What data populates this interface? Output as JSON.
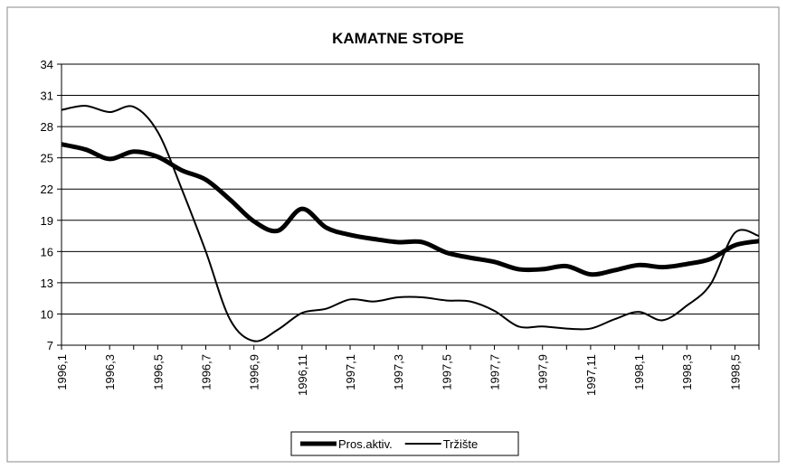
{
  "chart_data": {
    "type": "line",
    "title": "KAMATNE STOPE",
    "categories": [
      "1996,1",
      null,
      "1996,3",
      null,
      "1996,5",
      null,
      "1996,7",
      null,
      "1996,9",
      null,
      "1996,11",
      null,
      "1997,1",
      null,
      "1997,3",
      null,
      "1997,5",
      null,
      "1997,7",
      null,
      "1997,9",
      null,
      "1997,11",
      null,
      "1998,1",
      null,
      "1998,3",
      null,
      "1998,5",
      null
    ],
    "series": [
      {
        "name": "Pros.aktiv.",
        "color": "#000000",
        "values": [
          26.3,
          25.8,
          24.9,
          25.6,
          25.1,
          23.8,
          22.9,
          21.0,
          18.9,
          18.0,
          20.1,
          18.3,
          17.6,
          17.2,
          16.9,
          16.9,
          15.9,
          15.4,
          15.0,
          14.3,
          14.3,
          14.6,
          13.8,
          14.2,
          14.7,
          14.5,
          14.8,
          15.3,
          16.6,
          17.0
        ]
      },
      {
        "name": "Tržište",
        "color": "#000000",
        "values": [
          29.6,
          30.0,
          29.4,
          29.9,
          27.5,
          22.0,
          16.0,
          9.5,
          7.4,
          8.5,
          10.1,
          10.5,
          11.4,
          11.2,
          11.6,
          11.6,
          11.3,
          11.2,
          10.3,
          8.8,
          8.8,
          8.6,
          8.6,
          9.5,
          10.2,
          9.4,
          10.8,
          12.9,
          17.8,
          17.5
        ]
      }
    ],
    "ylim": [
      7,
      34
    ],
    "yticks": [
      7,
      10,
      13,
      16,
      19,
      22,
      25,
      28,
      31,
      34
    ],
    "grid": true,
    "legend": "bottom"
  }
}
